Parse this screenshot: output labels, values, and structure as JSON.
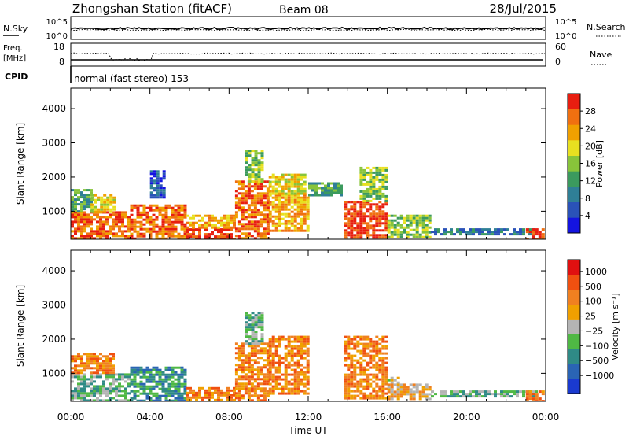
{
  "header": {
    "station": "Zhongshan Station (fitACF)",
    "beam": "Beam 08",
    "date": "28/Jul/2015"
  },
  "strip_panels": {
    "nsky_label": "N.Sky",
    "nsearch_label": "N.Search",
    "nsky_ticks": [
      "10^5",
      "10^0"
    ],
    "freq_label_line1": "Freq.",
    "freq_label_line2": "[MHz]",
    "freq_ticks": [
      "18",
      "8"
    ],
    "nave_label": "Nave",
    "nave_ticks": [
      "60",
      "0"
    ],
    "cpid_label": "CPID",
    "cpid_text": "normal (fast stereo) 153"
  },
  "colors": {
    "power_scale": [
      "#1414e0",
      "#2a52b8",
      "#2f7f96",
      "#3b9a5e",
      "#88c43a",
      "#e8e020",
      "#f0a000",
      "#f07010",
      "#e81e10"
    ],
    "velocity_scale": [
      "#1a3ad0",
      "#2a64b4",
      "#2f8a86",
      "#4fb844",
      "#b4b4b4",
      "#f0a000",
      "#f08020",
      "#f05010",
      "#e01010"
    ]
  },
  "chart_data": [
    {
      "type": "heatmap",
      "title": "",
      "xlabel": "Time UT",
      "ylabel": "Slant Range [km]",
      "x_ticks": [
        "00:00",
        "04:00",
        "08:00",
        "12:00",
        "16:00",
        "20:00",
        "00:00"
      ],
      "x_range_hours": [
        0,
        24
      ],
      "y_ticks": [
        "1000",
        "2000",
        "3000",
        "4000"
      ],
      "ylim": [
        180,
        4600
      ],
      "colorbar": {
        "label": "Power [dB]",
        "range": [
          0,
          32
        ],
        "tick_labels": [
          "4",
          "8",
          "12",
          "16",
          "20",
          "24",
          "28"
        ],
        "tick_values": [
          4,
          8,
          12,
          16,
          20,
          24,
          28
        ]
      },
      "regions": [
        {
          "t": [
            0.0,
            3.0
          ],
          "r": [
            200,
            1000
          ],
          "level": 7
        },
        {
          "t": [
            0.0,
            1.0
          ],
          "r": [
            1000,
            1650
          ],
          "level": 3
        },
        {
          "t": [
            1.0,
            2.2
          ],
          "r": [
            1000,
            1500
          ],
          "level": 5
        },
        {
          "t": [
            3.0,
            5.8
          ],
          "r": [
            200,
            1200
          ],
          "level": 7
        },
        {
          "t": [
            5.8,
            8.3
          ],
          "r": [
            200,
            500
          ],
          "level": 8
        },
        {
          "t": [
            5.8,
            8.3
          ],
          "r": [
            500,
            900
          ],
          "level": 6
        },
        {
          "t": [
            4.0,
            4.7
          ],
          "r": [
            1400,
            2200
          ],
          "level": 1
        },
        {
          "t": [
            8.3,
            10.0
          ],
          "r": [
            200,
            1900
          ],
          "level": 7
        },
        {
          "t": [
            8.8,
            9.6
          ],
          "r": [
            1900,
            2800
          ],
          "level": 4
        },
        {
          "t": [
            10.0,
            12.0
          ],
          "r": [
            400,
            1500
          ],
          "level": 6
        },
        {
          "t": [
            10.0,
            11.8
          ],
          "r": [
            1500,
            2100
          ],
          "level": 5
        },
        {
          "t": [
            12.0,
            13.6
          ],
          "r": [
            1500,
            1850
          ],
          "level": 3
        },
        {
          "t": [
            13.8,
            16.0
          ],
          "r": [
            250,
            1300
          ],
          "level": 8
        },
        {
          "t": [
            14.6,
            16.0
          ],
          "r": [
            1300,
            2300
          ],
          "level": 4
        },
        {
          "t": [
            16.0,
            18.2
          ],
          "r": [
            250,
            900
          ],
          "level": 4
        },
        {
          "t": [
            18.2,
            23.6
          ],
          "r": [
            300,
            500
          ],
          "level": 2
        },
        {
          "t": [
            23.0,
            23.9
          ],
          "r": [
            200,
            500
          ],
          "level": 8
        }
      ]
    },
    {
      "type": "heatmap",
      "title": "",
      "xlabel": "Time UT",
      "ylabel": "Slant Range [km]",
      "x_ticks": [
        "00:00",
        "04:00",
        "08:00",
        "12:00",
        "16:00",
        "20:00",
        "00:00"
      ],
      "x_range_hours": [
        0,
        24
      ],
      "y_ticks": [
        "1000",
        "2000",
        "3000",
        "4000"
      ],
      "ylim": [
        180,
        4600
      ],
      "colorbar": {
        "label": "Velocity [m s⁻¹]",
        "tick_labels": [
          "1000",
          "500",
          "100",
          "25",
          "−25",
          "−100",
          "−500",
          "−1000"
        ]
      },
      "regions": [
        {
          "t": [
            0.0,
            3.0
          ],
          "r": [
            200,
            1000
          ],
          "level": 3
        },
        {
          "t": [
            0.0,
            2.2
          ],
          "r": [
            1000,
            1600
          ],
          "level": 6
        },
        {
          "t": [
            3.0,
            5.8
          ],
          "r": [
            200,
            1200
          ],
          "level": 2
        },
        {
          "t": [
            5.8,
            8.3
          ],
          "r": [
            200,
            600
          ],
          "level": 6
        },
        {
          "t": [
            8.3,
            10.0
          ],
          "r": [
            200,
            1900
          ],
          "level": 6
        },
        {
          "t": [
            8.8,
            9.6
          ],
          "r": [
            1900,
            2800
          ],
          "level": 3
        },
        {
          "t": [
            10.0,
            12.0
          ],
          "r": [
            400,
            2100
          ],
          "level": 6
        },
        {
          "t": [
            13.8,
            16.0
          ],
          "r": [
            250,
            2100
          ],
          "level": 6
        },
        {
          "t": [
            16.0,
            16.6
          ],
          "r": [
            700,
            900
          ],
          "level": 4
        },
        {
          "t": [
            16.0,
            18.2
          ],
          "r": [
            250,
            700
          ],
          "level": 5
        },
        {
          "t": [
            18.2,
            23.6
          ],
          "r": [
            300,
            500
          ],
          "level": 3
        },
        {
          "t": [
            23.0,
            23.9
          ],
          "r": [
            200,
            500
          ],
          "level": 6
        }
      ]
    }
  ]
}
